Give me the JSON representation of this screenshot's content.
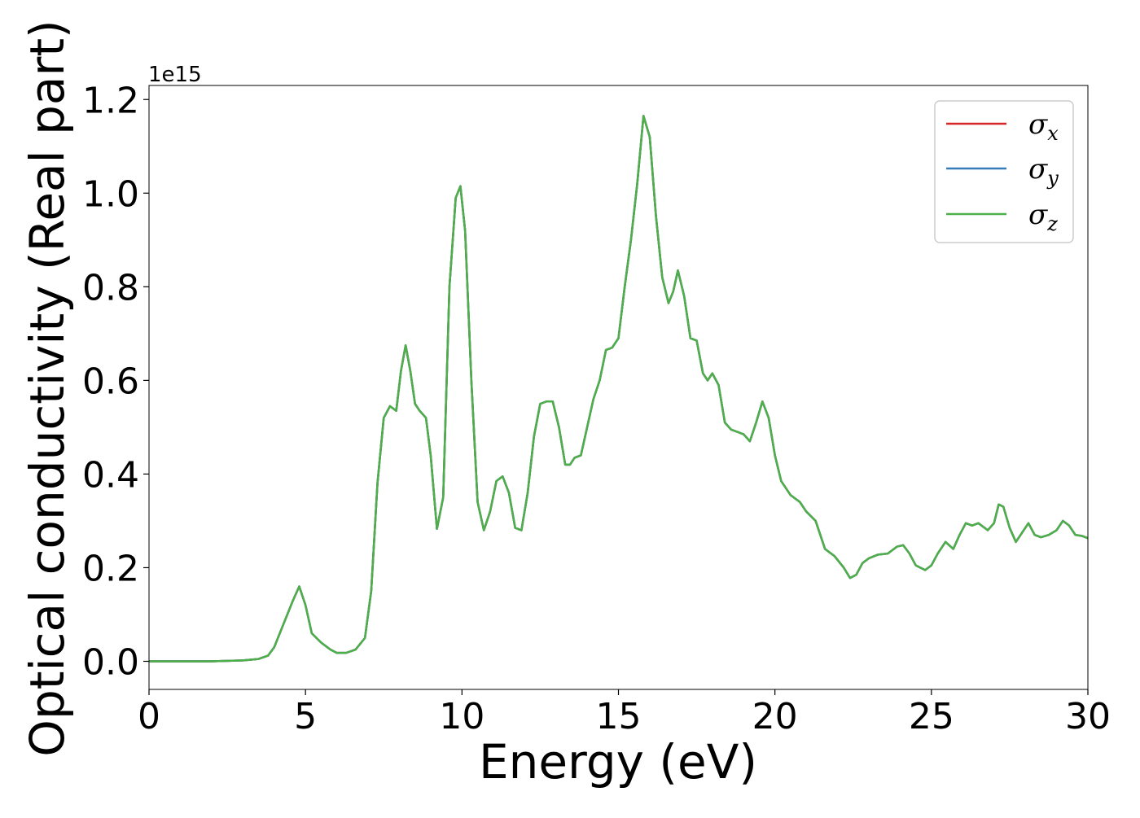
{
  "chart_data": {
    "type": "line",
    "xlabel": "Energy (eV)",
    "ylabel": "Optical conductivity (Real part)",
    "y_offset_text": "1e15",
    "xlim": [
      0,
      30
    ],
    "ylim": [
      -0.06,
      1.23
    ],
    "x_ticks": [
      0,
      5,
      10,
      15,
      20,
      25,
      30
    ],
    "x_tick_labels": [
      "0",
      "5",
      "10",
      "15",
      "20",
      "25",
      "30"
    ],
    "y_ticks": [
      0.0,
      0.2,
      0.4,
      0.6,
      0.8,
      1.0,
      1.2
    ],
    "y_tick_labels": [
      "0.0",
      "0.2",
      "0.4",
      "0.6",
      "0.8",
      "1.0",
      "1.2"
    ],
    "grid": false,
    "legend_position": "top-right",
    "x": [
      0,
      1,
      2,
      3,
      3.5,
      3.8,
      4.0,
      4.3,
      4.6,
      4.8,
      5.0,
      5.2,
      5.5,
      5.8,
      6.0,
      6.3,
      6.6,
      6.9,
      7.1,
      7.3,
      7.5,
      7.7,
      7.9,
      8.05,
      8.2,
      8.35,
      8.5,
      8.65,
      8.85,
      9.0,
      9.2,
      9.4,
      9.6,
      9.8,
      9.95,
      10.1,
      10.3,
      10.5,
      10.7,
      10.9,
      11.1,
      11.3,
      11.5,
      11.7,
      11.9,
      12.1,
      12.3,
      12.5,
      12.7,
      12.9,
      13.1,
      13.3,
      13.45,
      13.6,
      13.8,
      14.0,
      14.2,
      14.4,
      14.6,
      14.8,
      15.0,
      15.2,
      15.4,
      15.6,
      15.8,
      16.0,
      16.2,
      16.4,
      16.6,
      16.75,
      16.9,
      17.1,
      17.3,
      17.5,
      17.7,
      17.85,
      18.0,
      18.2,
      18.4,
      18.6,
      18.8,
      19.0,
      19.2,
      19.4,
      19.6,
      19.8,
      20.0,
      20.2,
      20.5,
      20.8,
      21.0,
      21.3,
      21.6,
      21.9,
      22.2,
      22.4,
      22.6,
      22.8,
      23.0,
      23.3,
      23.6,
      23.9,
      24.1,
      24.3,
      24.5,
      24.8,
      25.0,
      25.2,
      25.45,
      25.7,
      25.9,
      26.1,
      26.3,
      26.5,
      26.8,
      27.0,
      27.15,
      27.3,
      27.5,
      27.7,
      27.9,
      28.1,
      28.3,
      28.5,
      28.75,
      29.0,
      29.2,
      29.4,
      29.6,
      29.8,
      30.0
    ],
    "series": [
      {
        "name": "σx",
        "color": "#d62728",
        "values": [
          0.0,
          0.0,
          0.0,
          0.002,
          0.005,
          0.012,
          0.03,
          0.08,
          0.13,
          0.16,
          0.12,
          0.06,
          0.04,
          0.025,
          0.018,
          0.018,
          0.025,
          0.05,
          0.15,
          0.38,
          0.52,
          0.545,
          0.535,
          0.62,
          0.675,
          0.62,
          0.55,
          0.535,
          0.52,
          0.44,
          0.283,
          0.35,
          0.8,
          0.99,
          1.015,
          0.92,
          0.6,
          0.34,
          0.28,
          0.32,
          0.385,
          0.395,
          0.36,
          0.285,
          0.28,
          0.36,
          0.48,
          0.55,
          0.555,
          0.555,
          0.5,
          0.42,
          0.42,
          0.435,
          0.44,
          0.5,
          0.56,
          0.6,
          0.665,
          0.67,
          0.69,
          0.8,
          0.9,
          1.02,
          1.165,
          1.12,
          0.95,
          0.82,
          0.765,
          0.79,
          0.835,
          0.78,
          0.69,
          0.685,
          0.615,
          0.6,
          0.615,
          0.59,
          0.51,
          0.495,
          0.49,
          0.485,
          0.47,
          0.51,
          0.555,
          0.52,
          0.44,
          0.385,
          0.355,
          0.34,
          0.32,
          0.3,
          0.24,
          0.225,
          0.2,
          0.178,
          0.185,
          0.21,
          0.22,
          0.228,
          0.23,
          0.245,
          0.248,
          0.23,
          0.205,
          0.195,
          0.205,
          0.23,
          0.255,
          0.24,
          0.27,
          0.295,
          0.29,
          0.295,
          0.28,
          0.295,
          0.335,
          0.33,
          0.285,
          0.255,
          0.275,
          0.295,
          0.27,
          0.265,
          0.27,
          0.28,
          0.3,
          0.29,
          0.27,
          0.268,
          0.263
        ]
      },
      {
        "name": "σy",
        "color": "#377eb8",
        "values": [
          0.0,
          0.0,
          0.0,
          0.002,
          0.005,
          0.012,
          0.03,
          0.08,
          0.13,
          0.16,
          0.12,
          0.06,
          0.04,
          0.025,
          0.018,
          0.018,
          0.025,
          0.05,
          0.15,
          0.38,
          0.52,
          0.545,
          0.535,
          0.62,
          0.675,
          0.62,
          0.55,
          0.535,
          0.52,
          0.44,
          0.283,
          0.35,
          0.8,
          0.99,
          1.015,
          0.92,
          0.6,
          0.34,
          0.28,
          0.32,
          0.385,
          0.395,
          0.36,
          0.285,
          0.28,
          0.36,
          0.48,
          0.55,
          0.555,
          0.555,
          0.5,
          0.42,
          0.42,
          0.435,
          0.44,
          0.5,
          0.56,
          0.6,
          0.665,
          0.67,
          0.69,
          0.8,
          0.9,
          1.02,
          1.165,
          1.12,
          0.95,
          0.82,
          0.765,
          0.79,
          0.835,
          0.78,
          0.69,
          0.685,
          0.615,
          0.6,
          0.615,
          0.59,
          0.51,
          0.495,
          0.49,
          0.485,
          0.47,
          0.51,
          0.555,
          0.52,
          0.44,
          0.385,
          0.355,
          0.34,
          0.32,
          0.3,
          0.24,
          0.225,
          0.2,
          0.178,
          0.185,
          0.21,
          0.22,
          0.228,
          0.23,
          0.245,
          0.248,
          0.23,
          0.205,
          0.195,
          0.205,
          0.23,
          0.255,
          0.24,
          0.27,
          0.295,
          0.29,
          0.295,
          0.28,
          0.295,
          0.335,
          0.33,
          0.285,
          0.255,
          0.275,
          0.295,
          0.27,
          0.265,
          0.27,
          0.28,
          0.3,
          0.29,
          0.27,
          0.268,
          0.263
        ]
      },
      {
        "name": "σz",
        "color": "#4daf4a",
        "values": [
          0.0,
          0.0,
          0.0,
          0.002,
          0.005,
          0.012,
          0.03,
          0.08,
          0.13,
          0.16,
          0.12,
          0.06,
          0.04,
          0.025,
          0.018,
          0.018,
          0.025,
          0.05,
          0.15,
          0.38,
          0.52,
          0.545,
          0.535,
          0.62,
          0.675,
          0.62,
          0.55,
          0.535,
          0.52,
          0.44,
          0.283,
          0.35,
          0.8,
          0.99,
          1.015,
          0.92,
          0.6,
          0.34,
          0.28,
          0.32,
          0.385,
          0.395,
          0.36,
          0.285,
          0.28,
          0.36,
          0.48,
          0.55,
          0.555,
          0.555,
          0.5,
          0.42,
          0.42,
          0.435,
          0.44,
          0.5,
          0.56,
          0.6,
          0.665,
          0.67,
          0.69,
          0.8,
          0.9,
          1.02,
          1.165,
          1.12,
          0.95,
          0.82,
          0.765,
          0.79,
          0.835,
          0.78,
          0.69,
          0.685,
          0.615,
          0.6,
          0.615,
          0.59,
          0.51,
          0.495,
          0.49,
          0.485,
          0.47,
          0.51,
          0.555,
          0.52,
          0.44,
          0.385,
          0.355,
          0.34,
          0.32,
          0.3,
          0.24,
          0.225,
          0.2,
          0.178,
          0.185,
          0.21,
          0.22,
          0.228,
          0.23,
          0.245,
          0.248,
          0.23,
          0.205,
          0.195,
          0.205,
          0.23,
          0.255,
          0.24,
          0.27,
          0.295,
          0.29,
          0.295,
          0.28,
          0.295,
          0.335,
          0.33,
          0.285,
          0.255,
          0.275,
          0.295,
          0.27,
          0.265,
          0.27,
          0.28,
          0.3,
          0.29,
          0.27,
          0.268,
          0.263
        ]
      }
    ]
  },
  "legend": {
    "items": [
      {
        "symbol": "σ",
        "subscript": "x"
      },
      {
        "symbol": "σ",
        "subscript": "y"
      },
      {
        "symbol": "σ",
        "subscript": "z"
      }
    ]
  }
}
